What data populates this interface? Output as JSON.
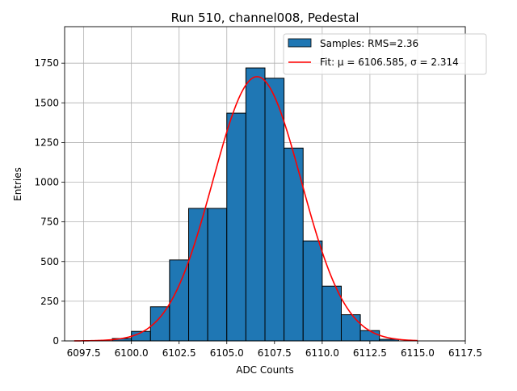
{
  "chart_data": {
    "type": "bar",
    "title": "Run 510, channel008, Pedestal",
    "xlabel": "ADC Counts",
    "ylabel": "Entries",
    "xlim": [
      6096.5,
      6117.5
    ],
    "ylim": [
      0,
      1980
    ],
    "grid": true,
    "legend_position": "top-right",
    "x_ticks": [
      6097.5,
      6100.0,
      6102.5,
      6105.0,
      6107.5,
      6110.0,
      6112.5,
      6115.0,
      6117.5
    ],
    "x_tick_labels": [
      "6097.5",
      "6100.0",
      "6102.5",
      "6105.0",
      "6107.5",
      "6110.0",
      "6112.5",
      "6115.0",
      "6117.5"
    ],
    "y_ticks": [
      0,
      250,
      500,
      750,
      1000,
      1250,
      1500,
      1750
    ],
    "y_tick_labels": [
      "0",
      "250",
      "500",
      "750",
      "1000",
      "1250",
      "1500",
      "1750"
    ],
    "histogram": {
      "name": "Samples: RMS=2.36",
      "color": "#1f77b4",
      "edge_color": "#000000",
      "bins": [
        {
          "x0": 6099.0,
          "x1": 6100.0,
          "count": 15
        },
        {
          "x0": 6100.0,
          "x1": 6101.0,
          "count": 60
        },
        {
          "x0": 6101.0,
          "x1": 6102.0,
          "count": 215
        },
        {
          "x0": 6102.0,
          "x1": 6103.0,
          "count": 510
        },
        {
          "x0": 6103.0,
          "x1": 6104.0,
          "count": 835
        },
        {
          "x0": 6104.0,
          "x1": 6105.0,
          "count": 835
        },
        {
          "x0": 6105.0,
          "x1": 6106.0,
          "count": 1435
        },
        {
          "x0": 6106.0,
          "x1": 6107.0,
          "count": 1720
        },
        {
          "x0": 6107.0,
          "x1": 6108.0,
          "count": 1655
        },
        {
          "x0": 6108.0,
          "x1": 6109.0,
          "count": 1215
        },
        {
          "x0": 6109.0,
          "x1": 6110.0,
          "count": 630
        },
        {
          "x0": 6110.0,
          "x1": 6111.0,
          "count": 345
        },
        {
          "x0": 6111.0,
          "x1": 6112.0,
          "count": 165
        },
        {
          "x0": 6112.0,
          "x1": 6113.0,
          "count": 65
        },
        {
          "x0": 6113.0,
          "x1": 6114.0,
          "count": 10
        }
      ]
    },
    "fit": {
      "name": "Fit: μ = 6106.585, σ = 2.314",
      "color": "#ff0000",
      "type": "gaussian",
      "mu": 6106.585,
      "sigma": 2.314,
      "amplitude": 1665,
      "x_range": [
        6097.0,
        6115.0
      ]
    }
  }
}
